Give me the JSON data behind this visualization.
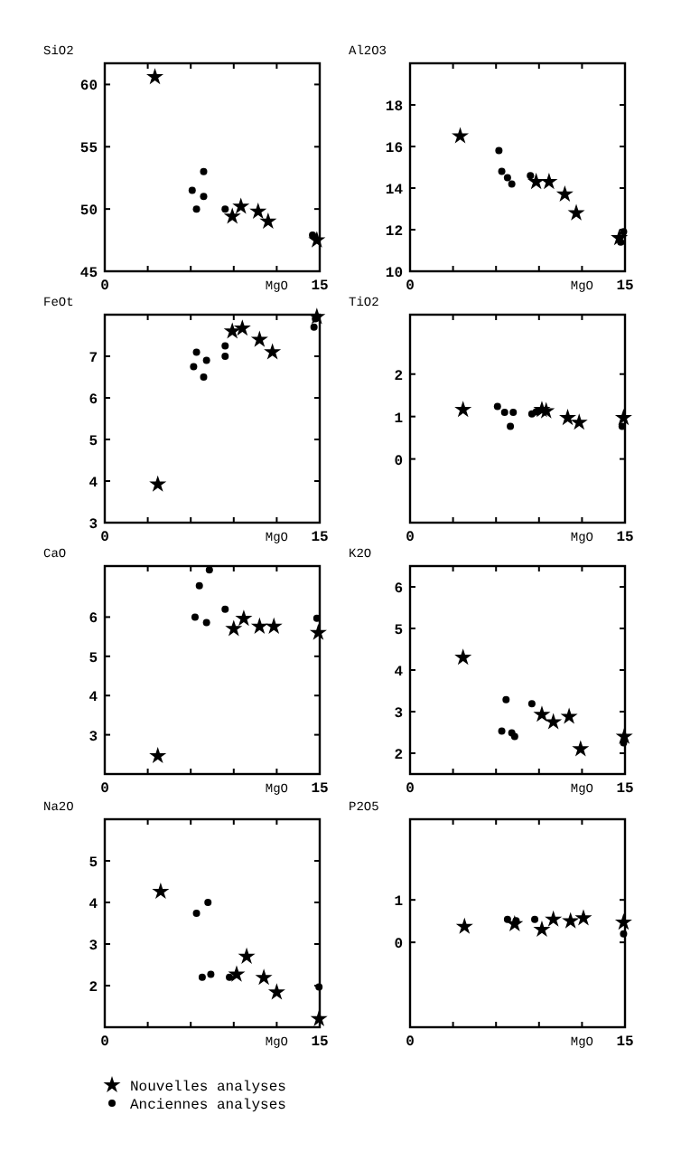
{
  "chart_data": [
    {
      "type": "scatter",
      "title": "SiO2",
      "xlabel": "MgO",
      "xlim": [
        0,
        15
      ],
      "xticks": [
        {
          "value": 0,
          "label": "0"
        },
        {
          "value": 3,
          "label": null
        },
        {
          "value": 6,
          "label": null
        },
        {
          "value": 9,
          "label": null
        },
        {
          "value": 12,
          "label": null
        },
        {
          "value": 15,
          "label": "15"
        }
      ],
      "ylim": [
        45,
        61.7
      ],
      "yticks": [
        45,
        50,
        55,
        60
      ],
      "grid": false,
      "legend": false,
      "series": [
        {
          "color": "#000000",
          "marker": "star",
          "x": [
            3.5,
            9.5,
            8.9,
            10.7,
            11.4,
            14.8
          ],
          "values": [
            60.6,
            50.2,
            49.4,
            49.8,
            49.0,
            47.5
          ]
        },
        {
          "color": "#000000",
          "marker": "circle",
          "x": [
            6.1,
            6.4,
            6.9,
            6.9,
            8.4,
            14.5
          ],
          "values": [
            51.5,
            50.0,
            53.0,
            51.0,
            50.0,
            47.9
          ]
        }
      ]
    },
    {
      "type": "scatter",
      "title": "Al2O3",
      "xlabel": "MgO",
      "xlim": [
        0,
        15
      ],
      "xticks": [
        {
          "value": 0,
          "label": "0"
        },
        {
          "value": 3,
          "label": null
        },
        {
          "value": 6,
          "label": null
        },
        {
          "value": 9,
          "label": null
        },
        {
          "value": 12,
          "label": null
        },
        {
          "value": 15,
          "label": "15"
        }
      ],
      "ylim": [
        10,
        20
      ],
      "yticks": [
        10,
        12,
        14,
        16,
        18
      ],
      "grid": false,
      "legend": false,
      "series": [
        {
          "color": "#000000",
          "marker": "star",
          "x": [
            3.5,
            8.8,
            9.7,
            10.8,
            11.6,
            14.6
          ],
          "values": [
            16.5,
            14.3,
            14.3,
            13.7,
            12.8,
            11.6
          ]
        },
        {
          "color": "#000000",
          "marker": "circle",
          "x": [
            6.2,
            6.4,
            6.8,
            7.1,
            8.4,
            14.7,
            14.9
          ],
          "values": [
            15.8,
            14.8,
            14.5,
            14.2,
            14.6,
            11.4,
            11.9
          ]
        }
      ]
    },
    {
      "type": "scatter",
      "title": "FeOt",
      "xlabel": "MgO",
      "xlim": [
        0,
        15
      ],
      "xticks": [
        {
          "value": 0,
          "label": "0"
        },
        {
          "value": 3,
          "label": null
        },
        {
          "value": 6,
          "label": null
        },
        {
          "value": 9,
          "label": null
        },
        {
          "value": 12,
          "label": null
        },
        {
          "value": 15,
          "label": "15"
        }
      ],
      "ylim": [
        3,
        8
      ],
      "yticks": [
        3,
        4,
        5,
        6,
        7
      ],
      "grid": false,
      "legend": false,
      "series": [
        {
          "color": "#000000",
          "marker": "star",
          "x": [
            3.7,
            8.9,
            9.6,
            10.8,
            11.7,
            14.8
          ],
          "values": [
            3.92,
            7.6,
            7.67,
            7.4,
            7.1,
            7.95
          ]
        },
        {
          "color": "#000000",
          "marker": "circle",
          "x": [
            6.2,
            6.4,
            6.9,
            7.1,
            8.4,
            8.4,
            14.6,
            14.7
          ],
          "values": [
            6.75,
            7.1,
            6.5,
            6.9,
            7.25,
            7.0,
            7.7,
            7.9
          ]
        }
      ]
    },
    {
      "type": "scatter",
      "title": "TiO2",
      "xlabel": "MgO",
      "xlim": [
        0,
        15
      ],
      "xticks": [
        {
          "value": 0,
          "label": "0"
        },
        {
          "value": 3,
          "label": null
        },
        {
          "value": 6,
          "label": null
        },
        {
          "value": 9,
          "label": null
        },
        {
          "value": 12,
          "label": null
        },
        {
          "value": 15,
          "label": "15"
        }
      ],
      "ylim": [
        -1.5,
        3.4
      ],
      "yticks": [
        0,
        1,
        2
      ],
      "grid": false,
      "legend": false,
      "series": [
        {
          "color": "#000000",
          "marker": "star",
          "x": [
            3.7,
            9.2,
            9.5,
            11.0,
            11.8,
            14.9
          ],
          "values": [
            1.16,
            1.16,
            1.13,
            0.97,
            0.86,
            0.97
          ]
        },
        {
          "color": "#000000",
          "marker": "circle",
          "x": [
            6.1,
            6.6,
            7.0,
            7.2,
            8.5,
            8.8,
            14.8
          ],
          "values": [
            1.24,
            1.1,
            0.77,
            1.1,
            1.06,
            1.11,
            0.77
          ]
        }
      ]
    },
    {
      "type": "scatter",
      "title": "CaO",
      "xlabel": "MgO",
      "xlim": [
        0,
        15
      ],
      "xticks": [
        {
          "value": 0,
          "label": "0"
        },
        {
          "value": 3,
          "label": null
        },
        {
          "value": 6,
          "label": null
        },
        {
          "value": 9,
          "label": null
        },
        {
          "value": 12,
          "label": null
        },
        {
          "value": 15,
          "label": "15"
        }
      ],
      "ylim": [
        2,
        7.3
      ],
      "yticks": [
        3,
        4,
        5,
        6
      ],
      "grid": false,
      "legend": false,
      "series": [
        {
          "color": "#000000",
          "marker": "star",
          "x": [
            3.7,
            9.0,
            9.7,
            10.8,
            11.8,
            14.9
          ],
          "values": [
            2.46,
            5.7,
            5.96,
            5.76,
            5.76,
            5.6
          ]
        },
        {
          "color": "#000000",
          "marker": "circle",
          "x": [
            6.3,
            6.6,
            7.1,
            7.3,
            8.4,
            14.8
          ],
          "values": [
            6.0,
            6.8,
            5.86,
            7.2,
            6.2,
            5.97
          ]
        }
      ]
    },
    {
      "type": "scatter",
      "title": "K2O",
      "xlabel": "MgO",
      "xlim": [
        0,
        15
      ],
      "xticks": [
        {
          "value": 0,
          "label": "0"
        },
        {
          "value": 3,
          "label": null
        },
        {
          "value": 6,
          "label": null
        },
        {
          "value": 9,
          "label": null
        },
        {
          "value": 12,
          "label": null
        },
        {
          "value": 15,
          "label": "15"
        }
      ],
      "ylim": [
        1.5,
        6.5
      ],
      "yticks": [
        2,
        3,
        4,
        5,
        6
      ],
      "grid": false,
      "legend": false,
      "series": [
        {
          "color": "#000000",
          "marker": "star",
          "x": [
            3.7,
            9.2,
            10.0,
            11.1,
            11.9,
            14.95
          ],
          "values": [
            4.3,
            2.93,
            2.75,
            2.88,
            2.1,
            2.4
          ]
        },
        {
          "color": "#000000",
          "marker": "circle",
          "x": [
            6.4,
            6.7,
            7.1,
            7.3,
            8.5,
            14.9
          ],
          "values": [
            2.53,
            3.29,
            2.49,
            2.4,
            3.19,
            2.25
          ]
        }
      ]
    },
    {
      "type": "scatter",
      "title": "Na2O",
      "xlabel": "MgO",
      "xlim": [
        0,
        15
      ],
      "xticks": [
        {
          "value": 0,
          "label": "0"
        },
        {
          "value": 3,
          "label": null
        },
        {
          "value": 6,
          "label": null
        },
        {
          "value": 9,
          "label": null
        },
        {
          "value": 12,
          "label": null
        },
        {
          "value": 15,
          "label": "15"
        }
      ],
      "ylim": [
        1,
        6
      ],
      "yticks": [
        2,
        3,
        4,
        5
      ],
      "grid": false,
      "legend": false,
      "series": [
        {
          "color": "#000000",
          "marker": "star",
          "x": [
            3.9,
            9.2,
            9.9,
            11.1,
            12.0,
            14.95
          ],
          "values": [
            4.26,
            2.27,
            2.7,
            2.19,
            1.84,
            1.2
          ]
        },
        {
          "color": "#000000",
          "marker": "circle",
          "x": [
            6.4,
            7.2,
            6.8,
            7.4,
            8.7,
            14.95
          ],
          "values": [
            3.74,
            4.0,
            2.2,
            2.27,
            2.2,
            1.97
          ]
        }
      ]
    },
    {
      "type": "scatter",
      "title": "P2O5",
      "xlabel": "MgO",
      "xlim": [
        0,
        15
      ],
      "xticks": [
        {
          "value": 0,
          "label": "0"
        },
        {
          "value": 3,
          "label": null
        },
        {
          "value": 6,
          "label": null
        },
        {
          "value": 9,
          "label": null
        },
        {
          "value": 12,
          "label": null
        },
        {
          "value": 15,
          "label": "15"
        }
      ],
      "ylim": [
        -2,
        2.9
      ],
      "yticks": [
        0,
        1
      ],
      "grid": false,
      "legend": "bottom",
      "series": [
        {
          "name": "Nouvelles analyses",
          "color": "#000000",
          "marker": "star",
          "x": [
            3.8,
            7.3,
            9.2,
            10.0,
            11.2,
            12.1,
            14.9
          ],
          "values": [
            0.37,
            0.43,
            0.3,
            0.54,
            0.5,
            0.57,
            0.47
          ]
        },
        {
          "name": "Anciennes analyses",
          "color": "#000000",
          "marker": "circle",
          "x": [
            6.8,
            7.4,
            8.7,
            14.9
          ],
          "values": [
            0.54,
            0.51,
            0.54,
            0.2
          ]
        }
      ]
    }
  ]
}
